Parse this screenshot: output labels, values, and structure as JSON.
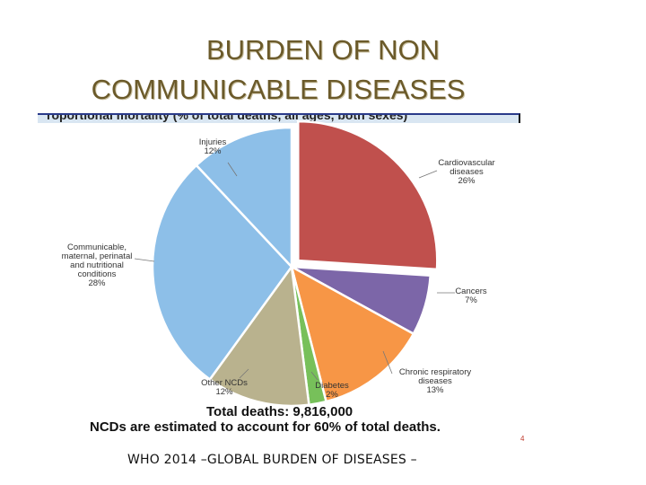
{
  "slide": {
    "title_line1": "BURDEN OF NON",
    "title_line2": "COMMUNICABLE DISEASES",
    "page_number": "4",
    "footer": "WHO 2014 –GLOBAL BURDEN OF DISEASES –"
  },
  "chart_data": {
    "type": "pie",
    "title": "roportional mortality (% of total deaths, all ages, both sexes)",
    "total_text": "Total deaths: 9,816,000",
    "note": "NCDs are estimated to account for 60% of total deaths.",
    "slices": [
      {
        "label_lines": [
          "Cardiovascular",
          "diseases"
        ],
        "value": 26,
        "value_label": "26%",
        "color": "#c0504d",
        "exploded": true
      },
      {
        "label_lines": [
          "Cancers"
        ],
        "value": 7,
        "value_label": "7%",
        "color": "#7c66a8",
        "exploded": false
      },
      {
        "label_lines": [
          "Chronic respiratory",
          "diseases"
        ],
        "value": 13,
        "value_label": "13%",
        "color": "#f79646",
        "exploded": false
      },
      {
        "label_lines": [
          "Diabetes"
        ],
        "value": 2,
        "value_label": "2%",
        "color": "#77c05a",
        "exploded": false
      },
      {
        "label_lines": [
          "Other NCDs"
        ],
        "value": 12,
        "value_label": "12%",
        "color": "#b9b28e",
        "exploded": false
      },
      {
        "label_lines": [
          "Communicable,",
          "maternal, perinatal",
          "and nutritional",
          "conditions"
        ],
        "value": 28,
        "value_label": "28%",
        "color": "#8dbfe8",
        "exploded": false
      },
      {
        "label_lines": [
          "Injuries"
        ],
        "value": 12,
        "value_label": "12%",
        "color": "#8dbfe8",
        "exploded": false
      }
    ]
  }
}
